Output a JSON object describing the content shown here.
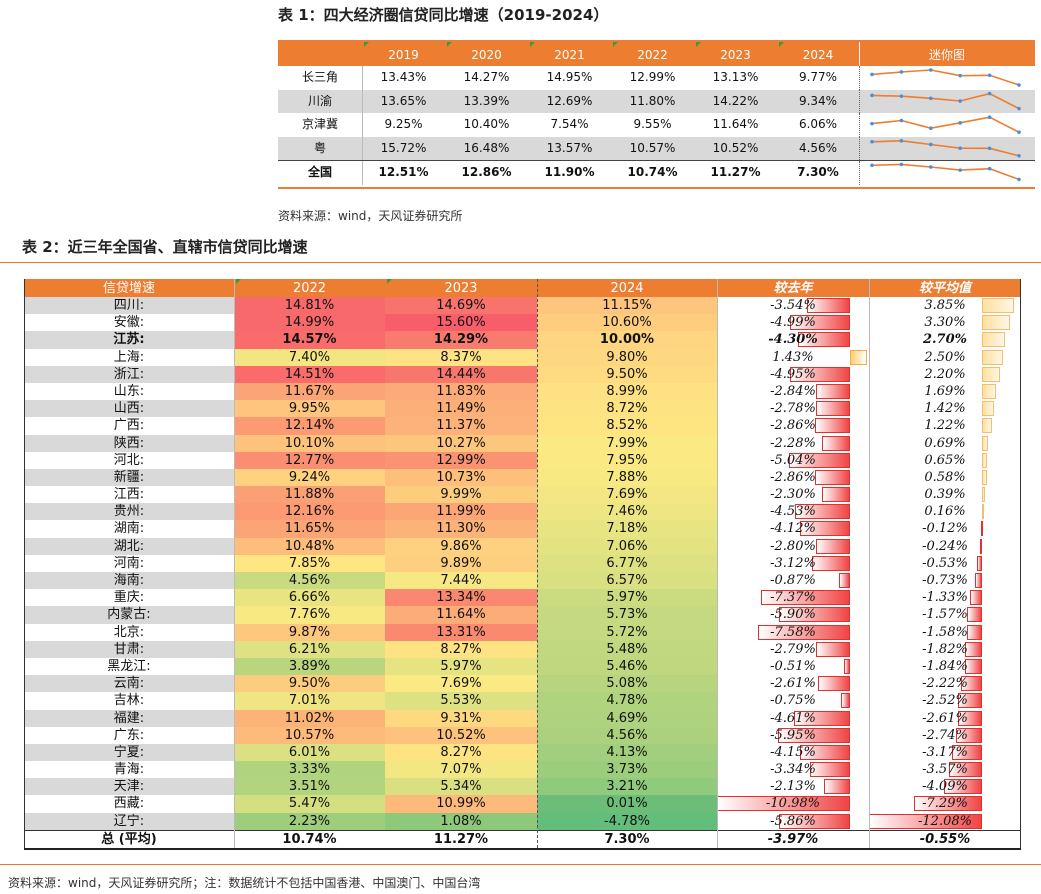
{
  "table1": {
    "title": "表 1：四大经济圈信贷同比增速（2019-2024）",
    "headers": [
      "",
      "2019",
      "2020",
      "2021",
      "2022",
      "2023",
      "2024",
      "迷你图"
    ],
    "rows": [
      {
        "name": "长三角",
        "values": [
          "13.43%",
          "14.27%",
          "14.95%",
          "12.99%",
          "13.13%",
          "9.77%"
        ],
        "nums": [
          13.43,
          14.27,
          14.95,
          12.99,
          13.13,
          9.77
        ]
      },
      {
        "name": "川渝",
        "values": [
          "13.65%",
          "13.39%",
          "12.69%",
          "11.80%",
          "14.22%",
          "9.34%"
        ],
        "nums": [
          13.65,
          13.39,
          12.69,
          11.8,
          14.22,
          9.34
        ]
      },
      {
        "name": "京津冀",
        "values": [
          "9.25%",
          "10.40%",
          "7.54%",
          "9.55%",
          "11.64%",
          "6.06%"
        ],
        "nums": [
          9.25,
          10.4,
          7.54,
          9.55,
          11.64,
          6.06
        ]
      },
      {
        "name": "粤",
        "values": [
          "15.72%",
          "16.48%",
          "13.57%",
          "10.57%",
          "10.52%",
          "4.56%"
        ],
        "nums": [
          15.72,
          16.48,
          13.57,
          10.57,
          10.52,
          4.56
        ]
      },
      {
        "name": "全国",
        "values": [
          "12.51%",
          "12.86%",
          "11.90%",
          "10.74%",
          "11.27%",
          "7.30%"
        ],
        "nums": [
          12.51,
          12.86,
          11.9,
          10.74,
          11.27,
          7.3
        ]
      }
    ],
    "source": "资料来源：wind，天风证券研究所",
    "spark_line_color": "#ed7d31",
    "spark_dot_color": "#4a90d9"
  },
  "table2": {
    "title": "表 2：近三年全国省、直辖市信贷同比增速",
    "headers": [
      "信贷增速",
      "2022",
      "2023",
      "2024",
      "较去年",
      "较平均值"
    ],
    "rows": [
      {
        "name": "四川:",
        "y2022": "14.81%",
        "y2023": "14.69%",
        "y2024": "11.15%",
        "d1": "-3.54%",
        "d2": "3.85%",
        "c22": "#f8696b",
        "c23": "#f8736c",
        "c24": "#fdc57d",
        "d1v": -3.54,
        "d2v": 3.85
      },
      {
        "name": "安徽:",
        "y2022": "14.99%",
        "y2023": "15.60%",
        "y2024": "10.60%",
        "d1": "-4.99%",
        "d2": "3.30%",
        "c22": "#f8696b",
        "c23": "#f85d6a",
        "c24": "#fecd7e",
        "d1v": -4.99,
        "d2v": 3.3
      },
      {
        "name": "江苏:",
        "y2022": "14.57%",
        "y2023": "14.29%",
        "y2024": "10.00%",
        "d1": "-4.30%",
        "d2": "2.70%",
        "c22": "#f96c6b",
        "c23": "#f97a6e",
        "c24": "#fed580",
        "d1v": -4.3,
        "d2v": 2.7,
        "bold": true
      },
      {
        "name": "上海:",
        "y2022": "7.40%",
        "y2023": "8.37%",
        "y2024": "9.80%",
        "d1": "1.43%",
        "d2": "2.50%",
        "c22": "#f4e583",
        "c23": "#ffe283",
        "c24": "#fed880",
        "d1v": 1.43,
        "d2v": 2.5
      },
      {
        "name": "浙江:",
        "y2022": "14.51%",
        "y2023": "14.44%",
        "y2024": "9.50%",
        "d1": "-4.95%",
        "d2": "2.20%",
        "c22": "#f96c6b",
        "c23": "#f8776d",
        "c24": "#fedb81",
        "d1v": -4.95,
        "d2v": 2.2
      },
      {
        "name": "山东:",
        "y2022": "11.67%",
        "y2023": "11.83%",
        "y2024": "8.99%",
        "d1": "-2.84%",
        "d2": "1.69%",
        "c22": "#fba475",
        "c23": "#fcaa77",
        "c24": "#fee182",
        "d1v": -2.84,
        "d2v": 1.69
      },
      {
        "name": "山西:",
        "y2022": "9.95%",
        "y2023": "11.49%",
        "y2024": "8.72%",
        "d1": "-2.78%",
        "d2": "1.42%",
        "c22": "#fdc57d",
        "c23": "#fcb078",
        "c24": "#fee382",
        "d1v": -2.78,
        "d2v": 1.42
      },
      {
        "name": "广西:",
        "y2022": "12.14%",
        "y2023": "11.37%",
        "y2024": "8.52%",
        "d1": "-2.86%",
        "d2": "1.22%",
        "c22": "#fb9a73",
        "c23": "#fcb278",
        "c24": "#fee582",
        "d1v": -2.86,
        "d2v": 1.22
      },
      {
        "name": "陕西:",
        "y2022": "10.10%",
        "y2023": "10.27%",
        "y2024": "7.99%",
        "d1": "-2.28%",
        "d2": "0.69%",
        "c22": "#fdc27c",
        "c23": "#fdc67d",
        "c24": "#fbe983",
        "d1v": -2.28,
        "d2v": 0.69
      },
      {
        "name": "河北:",
        "y2022": "12.77%",
        "y2023": "12.99%",
        "y2024": "7.95%",
        "d1": "-5.04%",
        "d2": "0.65%",
        "c22": "#fa8e71",
        "c23": "#fa9372",
        "c24": "#fbe983",
        "d1v": -5.04,
        "d2v": 0.65
      },
      {
        "name": "新疆:",
        "y2022": "9.24%",
        "y2023": "10.73%",
        "y2024": "7.88%",
        "d1": "-2.86%",
        "d2": "0.58%",
        "c22": "#fed280",
        "c23": "#fdbf7c",
        "c24": "#f9e983",
        "d1v": -2.86,
        "d2v": 0.58
      },
      {
        "name": "江西:",
        "y2022": "11.88%",
        "y2023": "9.99%",
        "y2024": "7.69%",
        "d1": "-2.30%",
        "d2": "0.39%",
        "c22": "#fba075",
        "c23": "#fdcd7e",
        "c24": "#f4e783",
        "d1v": -2.3,
        "d2v": 0.39
      },
      {
        "name": "贵州:",
        "y2022": "12.16%",
        "y2023": "11.99%",
        "y2024": "7.46%",
        "d1": "-4.53%",
        "d2": "0.16%",
        "c22": "#fb9a73",
        "c23": "#fca676",
        "c24": "#eee683",
        "d1v": -4.53,
        "d2v": 0.16
      },
      {
        "name": "湖南:",
        "y2022": "11.65%",
        "y2023": "11.30%",
        "y2024": "7.18%",
        "d1": "-4.12%",
        "d2": "-0.12%",
        "c22": "#fba475",
        "c23": "#fcb378",
        "c24": "#e7e482",
        "d1v": -4.12,
        "d2v": -0.12
      },
      {
        "name": "湖北:",
        "y2022": "10.48%",
        "y2023": "9.86%",
        "y2024": "7.06%",
        "d1": "-2.80%",
        "d2": "-0.24%",
        "c22": "#fdbd7b",
        "c23": "#fdd17f",
        "c24": "#e4e382",
        "d1v": -2.8,
        "d2v": -0.24
      },
      {
        "name": "河南:",
        "y2022": "7.85%",
        "y2023": "9.89%",
        "y2024": "6.77%",
        "d1": "-3.12%",
        "d2": "-0.53%",
        "c22": "#fee683",
        "c23": "#fdd07f",
        "c24": "#dde182",
        "d1v": -3.12,
        "d2v": -0.53
      },
      {
        "name": "海南:",
        "y2022": "4.56%",
        "y2023": "7.44%",
        "y2024": "6.57%",
        "d1": "-0.87%",
        "d2": "-0.73%",
        "c22": "#c8db80",
        "c23": "#f6e883",
        "c24": "#d9e081",
        "d1v": -0.87,
        "d2v": -0.73
      },
      {
        "name": "重庆:",
        "y2022": "6.66%",
        "y2023": "13.34%",
        "y2024": "5.97%",
        "d1": "-7.37%",
        "d2": "-1.33%",
        "c22": "#e8e482",
        "c23": "#fa8870",
        "c24": "#cbdc80",
        "d1v": -7.37,
        "d2v": -1.33
      },
      {
        "name": "内蒙古:",
        "y2022": "7.76%",
        "y2023": "11.64%",
        "y2024": "5.73%",
        "d1": "-5.90%",
        "d2": "-1.57%",
        "c22": "#f9e983",
        "c23": "#fcad77",
        "c24": "#c5da80",
        "d1v": -5.9,
        "d2v": -1.57
      },
      {
        "name": "北京:",
        "y2022": "9.87%",
        "y2023": "13.31%",
        "y2024": "5.72%",
        "d1": "-7.58%",
        "d2": "-1.58%",
        "c22": "#fdc87d",
        "c23": "#fa8970",
        "c24": "#c5da80",
        "d1v": -7.58,
        "d2v": -1.58
      },
      {
        "name": "甘肃:",
        "y2022": "6.21%",
        "y2023": "8.27%",
        "y2024": "5.48%",
        "d1": "-2.79%",
        "d2": "-1.82%",
        "c22": "#dee282",
        "c23": "#fee383",
        "c24": "#c0d87f",
        "d1v": -2.79,
        "d2v": -1.82
      },
      {
        "name": "黑龙江:",
        "y2022": "3.89%",
        "y2023": "5.97%",
        "y2024": "5.46%",
        "d1": "-0.51%",
        "d2": "-1.84%",
        "c22": "#b9d67f",
        "c23": "#e5e382",
        "c24": "#bfd87f",
        "d1v": -0.51,
        "d2v": -1.84
      },
      {
        "name": "云南:",
        "y2022": "9.50%",
        "y2023": "7.69%",
        "y2024": "5.08%",
        "d1": "-2.61%",
        "d2": "-2.22%",
        "c22": "#fdcd7e",
        "c23": "#fbea84",
        "c24": "#b7d57f",
        "d1v": -2.61,
        "d2v": -2.22
      },
      {
        "name": "吉林:",
        "y2022": "7.01%",
        "y2023": "5.53%",
        "y2024": "4.78%",
        "d1": "-0.75%",
        "d2": "-2.52%",
        "c22": "#efe683",
        "c23": "#dde182",
        "c24": "#b0d37e",
        "d1v": -0.75,
        "d2v": -2.52
      },
      {
        "name": "福建:",
        "y2022": "11.02%",
        "y2023": "9.31%",
        "y2024": "4.69%",
        "d1": "-4.61%",
        "d2": "-2.61%",
        "c22": "#fcb378",
        "c23": "#fed980",
        "c24": "#aed27e",
        "d1v": -4.61,
        "d2v": -2.61
      },
      {
        "name": "广东:",
        "y2022": "10.57%",
        "y2023": "10.52%",
        "y2024": "4.56%",
        "d1": "-5.95%",
        "d2": "-2.74%",
        "c22": "#fdbb7b",
        "c23": "#fdc37c",
        "c24": "#abd17e",
        "d1v": -5.95,
        "d2v": -2.74
      },
      {
        "name": "宁夏:",
        "y2022": "6.01%",
        "y2023": "8.27%",
        "y2024": "4.13%",
        "d1": "-4.15%",
        "d2": "-3.17%",
        "c22": "#dbe182",
        "c23": "#fee383",
        "c24": "#a2cf7d",
        "d1v": -4.15,
        "d2v": -3.17
      },
      {
        "name": "青海:",
        "y2022": "3.33%",
        "y2023": "7.07%",
        "y2024": "3.73%",
        "d1": "-3.34%",
        "d2": "-3.57%",
        "c22": "#afd37e",
        "c23": "#f2e783",
        "c24": "#9bcd7d",
        "d1v": -3.34,
        "d2v": -3.57
      },
      {
        "name": "天津:",
        "y2022": "3.51%",
        "y2023": "5.34%",
        "y2024": "3.21%",
        "d1": "-2.13%",
        "d2": "-4.09%",
        "c22": "#b2d47e",
        "c23": "#d9e081",
        "c24": "#90ca7c",
        "d1v": -2.13,
        "d2v": -4.09
      },
      {
        "name": "西藏:",
        "y2022": "5.47%",
        "y2023": "10.99%",
        "y2024": "0.01%",
        "d1": "-10.98%",
        "d2": "-7.29%",
        "c22": "#d4df81",
        "c23": "#fdba7b",
        "c24": "#6bbd78",
        "d1v": -10.98,
        "d2v": -7.29
      },
      {
        "name": "辽宁:",
        "y2022": "2.23%",
        "y2023": "1.08%",
        "y2024": "-4.78%",
        "d1": "-5.86%",
        "d2": "-12.08%",
        "c22": "#9ece7d",
        "c23": "#8ec97b",
        "c24": "#63be7b",
        "d1v": -5.86,
        "d2v": -12.08
      }
    ],
    "total": {
      "name": "总 (平均)",
      "y2022": "10.74%",
      "y2023": "11.27%",
      "y2024": "7.30%",
      "d1": "-3.97%",
      "d2": "-0.55%"
    },
    "source": "资料来源：wind，天风证券研究所；注：数据统计不包括中国香港、中国澳门、中国台湾"
  }
}
